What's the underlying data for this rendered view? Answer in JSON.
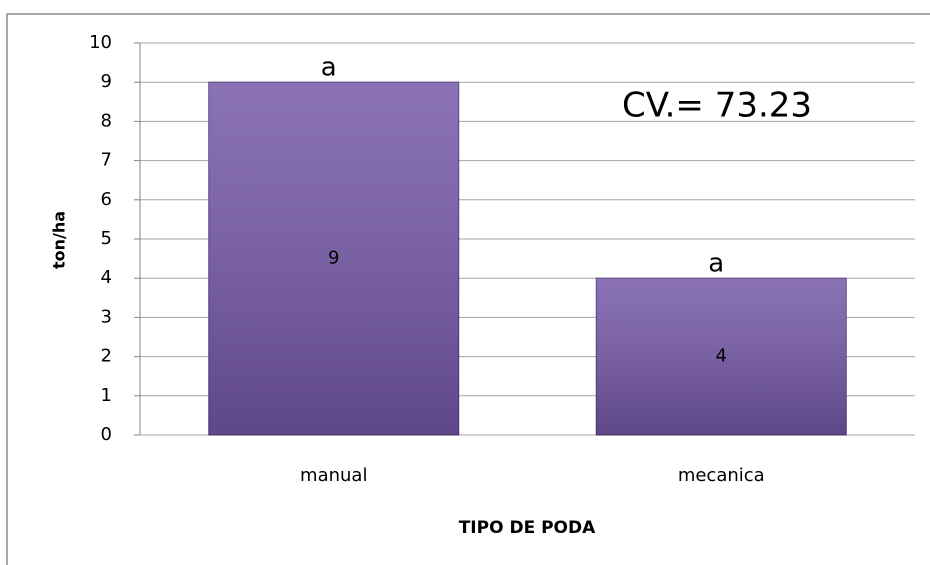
{
  "chart_data": {
    "type": "bar",
    "categories": [
      "manual",
      "mecanica"
    ],
    "values": [
      9,
      4
    ],
    "color": "#7659aa",
    "ylim": [
      0,
      10
    ],
    "yticks": [
      0,
      1,
      2,
      3,
      4,
      5,
      6,
      7,
      8,
      9,
      10
    ],
    "grid": true,
    "xlabel": "TIPO DE PODA",
    "ylabel": "ton/ha",
    "bar_annotations": [
      "a",
      "a"
    ],
    "annotation": "CV.= 73.23"
  }
}
